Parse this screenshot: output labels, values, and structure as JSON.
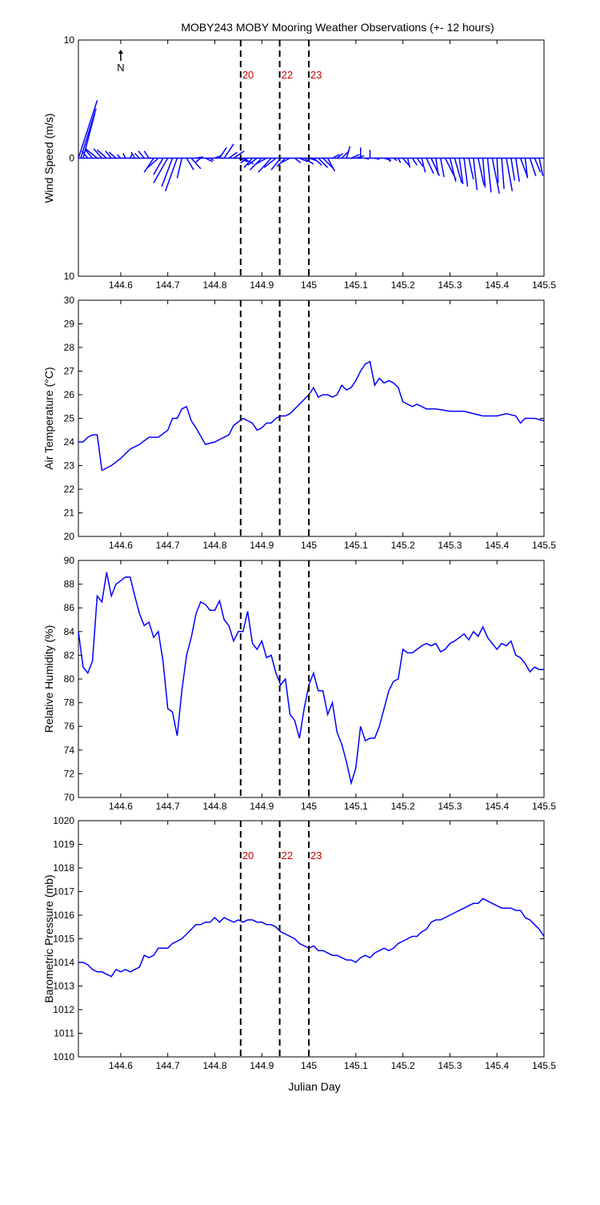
{
  "title": "MOBY243 MOBY Mooring Weather Observations (+- 12 hours)",
  "xlabel": "Julian Day",
  "colors": {
    "series": "#0000ff",
    "marker_label": "#cc0000",
    "axis": "#000000"
  },
  "north_label": "N",
  "markers": [
    {
      "day": 144.855,
      "label": "20"
    },
    {
      "day": 144.938,
      "label": "22"
    },
    {
      "day": 145.0,
      "label": "23"
    }
  ],
  "chart_data": [
    {
      "type": "line",
      "ylabel": "Wind Speed (m/s)",
      "xlim": [
        144.51,
        145.5
      ],
      "ylim": [
        -10,
        10
      ],
      "ytick_labels": [
        "10",
        "0",
        "10"
      ],
      "xticks": [
        "144.6",
        "144.7",
        "144.8",
        "144.9",
        "145",
        "145.1",
        "145.2",
        "145.3",
        "145.4",
        "145.5"
      ],
      "marker_labels_shown": true,
      "grid": false,
      "series": [
        {
          "style": "wind-stick",
          "x": [
            144.51,
            144.515,
            144.52,
            144.53,
            144.54,
            144.55,
            144.56,
            144.57,
            144.58,
            144.59,
            144.6,
            144.61,
            144.62,
            144.63,
            144.64,
            144.65,
            144.66,
            144.67,
            144.68,
            144.69,
            144.7,
            144.71,
            144.72,
            144.73,
            144.74,
            144.75,
            144.76,
            144.77,
            144.78,
            144.79,
            144.8,
            144.81,
            144.82,
            144.83,
            144.84,
            144.85,
            144.86,
            144.87,
            144.88,
            144.89,
            144.9,
            144.91,
            144.92,
            144.93,
            144.94,
            144.95,
            144.96,
            144.97,
            144.98,
            144.99,
            145.0,
            145.01,
            145.02,
            145.03,
            145.04,
            145.05,
            145.06,
            145.07,
            145.08,
            145.09,
            145.1,
            145.11,
            145.12,
            145.13,
            145.14,
            145.15,
            145.16,
            145.17,
            145.18,
            145.19,
            145.2,
            145.21,
            145.22,
            145.23,
            145.24,
            145.25,
            145.26,
            145.27,
            145.28,
            145.29,
            145.3,
            145.31,
            145.32,
            145.33,
            145.34,
            145.35,
            145.36,
            145.37,
            145.38,
            145.39,
            145.4,
            145.41,
            145.42,
            145.43,
            145.44,
            145.45,
            145.46,
            145.47,
            145.48,
            145.49
          ],
          "u": [
            1.6,
            1.3,
            1.0,
            -0.5,
            -0.6,
            -1.0,
            -0.7,
            -0.8,
            -0.5,
            -0.6,
            -0.3,
            -0.2,
            0.2,
            -0.3,
            -0.4,
            -0.5,
            -0.4,
            -0.8,
            -0.9,
            -0.8,
            -1.2,
            -0.9,
            -1.0,
            -0.4,
            0.6,
            0.8,
            0.6,
            -0.5,
            0.6,
            0.3,
            0.5,
            0.6,
            0.8,
            0.7,
            0.9,
            0.8,
            0.9,
            -0.6,
            -0.7,
            -0.8,
            -1.0,
            -0.9,
            -1.1,
            -1.0,
            -0.8,
            -0.7,
            -0.8,
            0.5,
            0.7,
            0.8,
            0.6,
            0.7,
            0.8,
            0.9,
            0.6,
            0.6,
            0.5,
            0.6,
            0.3,
            0.7,
            0.7,
            0.0,
            0.3,
            0.0,
            0.4,
            0.2,
            0.6,
            0.1,
            0.3,
            0.2,
            0.5,
            0.2,
            0.4,
            0.5,
            0.3,
            0.6,
            0.7,
            0.2,
            0.3,
            0.9,
            0.5,
            0.6,
            0.3,
            0.3,
            0.4,
            0.3,
            0.5,
            0.2,
            0.3,
            0.6,
            0.1,
            0.2,
            0.5,
            0.3,
            0.3,
            0.6,
            0.2,
            0.5,
            0.5,
            0.3
          ],
          "v": [
            4.9,
            4.2,
            3.8,
            0.6,
            0.7,
            0.8,
            0.8,
            0.7,
            0.6,
            0.5,
            0.3,
            0.4,
            0.4,
            0.5,
            0.4,
            0.6,
            0.6,
            -1.2,
            -0.8,
            -1.4,
            -2.1,
            -2.4,
            -2.8,
            -1.7,
            -1.0,
            -0.9,
            0.1,
            -0.4,
            -0.3,
            -0.2,
            0.2,
            0.9,
            1.2,
            0.5,
            0.6,
            -0.3,
            -0.5,
            -0.4,
            -0.8,
            -0.6,
            -1.0,
            -0.5,
            -1.2,
            -0.8,
            -1.0,
            -0.7,
            -0.4,
            -0.4,
            -0.3,
            -0.5,
            -0.2,
            -0.6,
            -0.8,
            -0.9,
            -1.1,
            0.3,
            0.4,
            0.6,
            1.0,
            0.3,
            0.2,
            0.9,
            -0.1,
            0.7,
            -0.1,
            0.0,
            -0.2,
            -0.3,
            -0.2,
            -0.4,
            -0.6,
            -0.8,
            -0.6,
            -0.7,
            -1.2,
            -1.3,
            -1.5,
            -1.4,
            -1.6,
            -1.8,
            -2.0,
            -2.1,
            -2.2,
            -2.4,
            -1.8,
            -2.7,
            -2.3,
            -2.5,
            -2.9,
            -3.0,
            -2.1,
            -2.6,
            -2.8,
            -1.9,
            -2.0,
            -1.6,
            -1.7,
            -1.5,
            -1.2,
            -1.5
          ]
        }
      ]
    },
    {
      "type": "line",
      "ylabel": "Air Temperature (°C)",
      "xlim": [
        144.51,
        145.5
      ],
      "ylim": [
        20,
        30
      ],
      "ytick_labels": [
        "20",
        "21",
        "22",
        "23",
        "24",
        "25",
        "26",
        "27",
        "28",
        "29",
        "30"
      ],
      "xticks": [
        "144.6",
        "144.7",
        "144.8",
        "144.9",
        "145",
        "145.1",
        "145.2",
        "145.3",
        "145.4",
        "145.5"
      ],
      "marker_labels_shown": false,
      "grid": false,
      "series": [
        {
          "x": [
            144.51,
            144.52,
            144.53,
            144.54,
            144.55,
            144.56,
            144.57,
            144.58,
            144.6,
            144.62,
            144.64,
            144.66,
            144.68,
            144.7,
            144.71,
            144.72,
            144.73,
            144.74,
            144.75,
            144.76,
            144.78,
            144.8,
            144.81,
            144.82,
            144.83,
            144.84,
            144.86,
            144.87,
            144.88,
            144.89,
            144.9,
            144.91,
            144.92,
            144.93,
            144.94,
            144.95,
            144.96,
            144.97,
            144.98,
            144.99,
            145.0,
            145.01,
            145.02,
            145.03,
            145.04,
            145.05,
            145.06,
            145.07,
            145.08,
            145.09,
            145.1,
            145.11,
            145.12,
            145.13,
            145.14,
            145.15,
            145.16,
            145.17,
            145.18,
            145.19,
            145.2,
            145.21,
            145.22,
            145.23,
            145.24,
            145.25,
            145.27,
            145.3,
            145.33,
            145.35,
            145.37,
            145.4,
            145.42,
            145.44,
            145.45,
            145.46,
            145.48,
            145.5
          ],
          "values": [
            24.0,
            24.0,
            24.2,
            24.3,
            24.3,
            22.8,
            22.9,
            23.0,
            23.3,
            23.7,
            23.9,
            24.2,
            24.2,
            24.5,
            25.0,
            25.0,
            25.4,
            25.5,
            24.9,
            24.6,
            23.9,
            24.0,
            24.1,
            24.2,
            24.3,
            24.7,
            25.0,
            24.9,
            24.8,
            24.5,
            24.6,
            24.8,
            24.8,
            25.0,
            25.1,
            25.1,
            25.2,
            25.4,
            25.6,
            25.8,
            26.0,
            26.3,
            25.9,
            26.0,
            26.0,
            25.9,
            26.0,
            26.4,
            26.2,
            26.3,
            26.6,
            27.0,
            27.3,
            27.4,
            26.4,
            26.7,
            26.5,
            26.6,
            26.5,
            26.3,
            25.7,
            25.6,
            25.5,
            25.6,
            25.5,
            25.4,
            25.4,
            25.3,
            25.3,
            25.2,
            25.1,
            25.1,
            25.2,
            25.1,
            24.8,
            25.0,
            25.0,
            24.9
          ]
        }
      ]
    },
    {
      "type": "line",
      "ylabel": "Relative Humidity (%)",
      "xlim": [
        144.51,
        145.5
      ],
      "ylim": [
        70,
        90
      ],
      "ytick_labels": [
        "70",
        "72",
        "74",
        "76",
        "78",
        "80",
        "82",
        "84",
        "86",
        "88",
        "90"
      ],
      "xticks": [
        "144.6",
        "144.7",
        "144.8",
        "144.9",
        "145",
        "145.1",
        "145.2",
        "145.3",
        "145.4",
        "145.5"
      ],
      "marker_labels_shown": false,
      "grid": false,
      "series": [
        {
          "x": [
            144.51,
            144.52,
            144.53,
            144.54,
            144.55,
            144.56,
            144.57,
            144.58,
            144.59,
            144.6,
            144.61,
            144.62,
            144.63,
            144.64,
            144.65,
            144.66,
            144.67,
            144.68,
            144.69,
            144.7,
            144.71,
            144.72,
            144.73,
            144.74,
            144.75,
            144.76,
            144.77,
            144.78,
            144.79,
            144.8,
            144.81,
            144.82,
            144.83,
            144.84,
            144.85,
            144.86,
            144.87,
            144.88,
            144.89,
            144.9,
            144.91,
            144.92,
            144.93,
            144.94,
            144.95,
            144.96,
            144.97,
            144.98,
            144.99,
            145.0,
            145.01,
            145.02,
            145.03,
            145.04,
            145.05,
            145.06,
            145.07,
            145.08,
            145.09,
            145.1,
            145.11,
            145.12,
            145.13,
            145.14,
            145.15,
            145.16,
            145.17,
            145.18,
            145.19,
            145.2,
            145.21,
            145.22,
            145.23,
            145.24,
            145.25,
            145.26,
            145.27,
            145.28,
            145.29,
            145.3,
            145.31,
            145.32,
            145.33,
            145.34,
            145.35,
            145.36,
            145.37,
            145.38,
            145.39,
            145.4,
            145.41,
            145.42,
            145.43,
            145.44,
            145.45,
            145.46,
            145.47,
            145.48,
            145.49,
            145.5
          ],
          "values": [
            84.0,
            81.0,
            80.5,
            81.5,
            87.0,
            86.5,
            89.0,
            87.0,
            88.0,
            88.3,
            88.6,
            88.6,
            87.0,
            85.5,
            84.5,
            84.8,
            83.5,
            84.0,
            81.5,
            77.5,
            77.2,
            75.2,
            79.0,
            82.0,
            83.5,
            85.5,
            86.5,
            86.3,
            85.8,
            85.8,
            86.6,
            85.0,
            84.5,
            83.2,
            84.0,
            84.0,
            85.7,
            83.0,
            82.5,
            83.2,
            81.8,
            82.0,
            80.5,
            79.5,
            80.0,
            77.0,
            76.5,
            75.0,
            77.5,
            79.5,
            80.5,
            79.0,
            79.0,
            77.0,
            78.0,
            75.5,
            74.5,
            73.0,
            71.2,
            72.5,
            76.0,
            74.8,
            75.0,
            75.0,
            76.0,
            77.5,
            79.0,
            79.8,
            80.0,
            82.5,
            82.2,
            82.2,
            82.5,
            82.8,
            83.0,
            82.8,
            83.0,
            82.3,
            82.5,
            83.0,
            83.2,
            83.5,
            83.8,
            83.3,
            84.0,
            83.6,
            84.4,
            83.5,
            83.0,
            82.5,
            83.0,
            82.8,
            83.2,
            82.0,
            81.8,
            81.3,
            80.6,
            81.0,
            80.8,
            80.8
          ]
        }
      ]
    },
    {
      "type": "line",
      "ylabel": "Barometric Pressure (mb)",
      "xlabel": "Julian Day",
      "xlim": [
        144.51,
        145.5
      ],
      "ylim": [
        1010,
        1020
      ],
      "ytick_labels": [
        "1010",
        "1011",
        "1012",
        "1013",
        "1014",
        "1015",
        "1016",
        "1017",
        "1018",
        "1019",
        "1020"
      ],
      "xticks": [
        "144.6",
        "144.7",
        "144.8",
        "144.9",
        "145",
        "145.1",
        "145.2",
        "145.3",
        "145.4",
        "145.5"
      ],
      "marker_labels_shown": true,
      "grid": false,
      "series": [
        {
          "x": [
            144.51,
            144.52,
            144.53,
            144.54,
            144.55,
            144.56,
            144.57,
            144.58,
            144.59,
            144.6,
            144.61,
            144.62,
            144.63,
            144.64,
            144.65,
            144.66,
            144.67,
            144.68,
            144.69,
            144.7,
            144.71,
            144.72,
            144.73,
            144.74,
            144.75,
            144.76,
            144.77,
            144.78,
            144.79,
            144.8,
            144.81,
            144.82,
            144.83,
            144.84,
            144.85,
            144.86,
            144.87,
            144.88,
            144.89,
            144.9,
            144.91,
            144.92,
            144.93,
            144.94,
            144.95,
            144.96,
            144.97,
            144.98,
            144.99,
            145.0,
            145.01,
            145.02,
            145.03,
            145.04,
            145.05,
            145.06,
            145.07,
            145.08,
            145.09,
            145.1,
            145.11,
            145.12,
            145.13,
            145.14,
            145.15,
            145.16,
            145.17,
            145.18,
            145.19,
            145.2,
            145.21,
            145.22,
            145.23,
            145.24,
            145.25,
            145.26,
            145.27,
            145.28,
            145.29,
            145.3,
            145.31,
            145.32,
            145.33,
            145.34,
            145.35,
            145.36,
            145.37,
            145.38,
            145.39,
            145.4,
            145.41,
            145.42,
            145.43,
            145.44,
            145.45,
            145.46,
            145.47,
            145.48,
            145.49,
            145.5
          ],
          "values": [
            1014.0,
            1014.0,
            1013.9,
            1013.7,
            1013.6,
            1013.6,
            1013.5,
            1013.4,
            1013.7,
            1013.6,
            1013.7,
            1013.6,
            1013.7,
            1013.8,
            1014.3,
            1014.2,
            1014.3,
            1014.6,
            1014.6,
            1014.6,
            1014.8,
            1014.9,
            1015.0,
            1015.2,
            1015.4,
            1015.6,
            1015.6,
            1015.7,
            1015.7,
            1015.9,
            1015.7,
            1015.9,
            1015.8,
            1015.7,
            1015.8,
            1015.7,
            1015.8,
            1015.8,
            1015.7,
            1015.7,
            1015.6,
            1015.6,
            1015.5,
            1015.3,
            1015.2,
            1015.1,
            1015.0,
            1014.8,
            1014.7,
            1014.6,
            1014.7,
            1014.5,
            1014.5,
            1014.4,
            1014.3,
            1014.3,
            1014.2,
            1014.1,
            1014.1,
            1014.0,
            1014.2,
            1014.3,
            1014.2,
            1014.4,
            1014.5,
            1014.6,
            1014.5,
            1014.6,
            1014.8,
            1014.9,
            1015.0,
            1015.1,
            1015.1,
            1015.3,
            1015.4,
            1015.7,
            1015.8,
            1015.8,
            1015.9,
            1016.0,
            1016.1,
            1016.2,
            1016.3,
            1016.4,
            1016.5,
            1016.5,
            1016.7,
            1016.6,
            1016.5,
            1016.4,
            1016.3,
            1016.3,
            1016.3,
            1016.2,
            1016.2,
            1015.9,
            1015.8,
            1015.6,
            1015.4,
            1015.1
          ]
        }
      ]
    }
  ]
}
